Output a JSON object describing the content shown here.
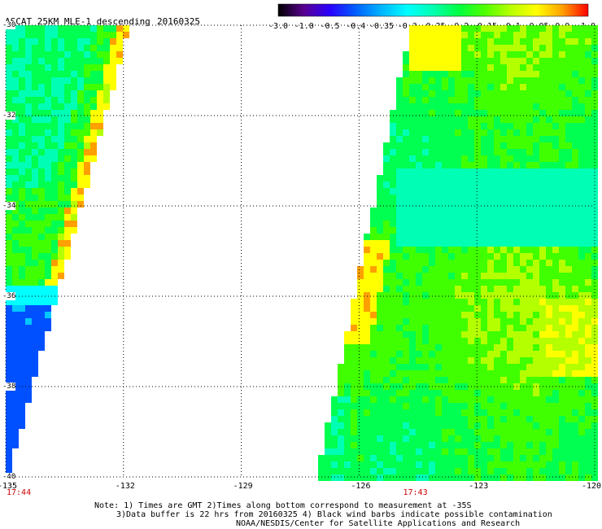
{
  "header": {
    "title": "ASCAT 25KM MLE-1 descending",
    "date": "20160325"
  },
  "colorbar": {
    "ticks": [
      "-3.0",
      "-1.0",
      "-0.5",
      "-0.4",
      "-0.35",
      "-0.3",
      "-0.25",
      "-0.2",
      "-0.15",
      "-0.1",
      "-0.05",
      "0.0",
      "1.0"
    ],
    "colors": [
      "#000000",
      "#5a0090",
      "#2a00ff",
      "#0060ff",
      "#00b4ff",
      "#00ffff",
      "#00ffb0",
      "#00ff40",
      "#50ff00",
      "#b8ff00",
      "#ffff00",
      "#ffa000",
      "#ff0000"
    ]
  },
  "map": {
    "lat_labels": [
      "-30",
      "-32",
      "-34",
      "-36",
      "-38",
      "-40"
    ],
    "lon_labels": [
      "-135",
      "-132",
      "-129",
      "-126",
      "-123",
      "-120"
    ],
    "lat_range": [
      -40,
      -30
    ],
    "lon_range": [
      -135,
      -120
    ],
    "swath_times": [
      {
        "label": "17:44",
        "lon": -135
      },
      {
        "label": "17:43",
        "lon": -124.9
      }
    ]
  },
  "notes": {
    "line1": "Note: 1) Times are GMT 2)Times along bottom correspond to measurement at -35S",
    "line2": "3)Data buffer is 22 hrs from 20160325 4) Black wind barbs indicate possible contamination",
    "line3": "NOAA/NESDIS/Center for Satellite Applications and Research"
  }
}
